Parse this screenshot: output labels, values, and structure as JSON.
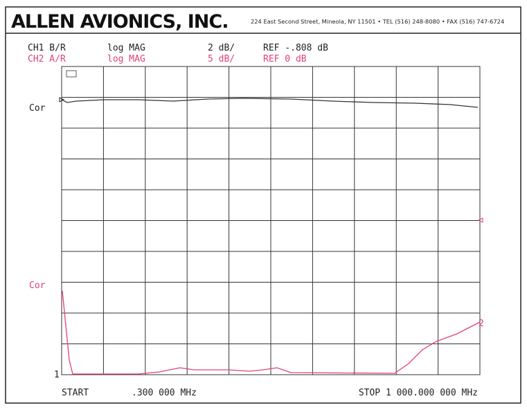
{
  "header": {
    "company": "ALLEN AVIONICS, INC.",
    "address": "224 East Second Street, Mineola, NY 11501 • TEL (516) 248-8080 • FAX (516) 747-6724"
  },
  "channels": [
    {
      "name": "CH1 B/R",
      "format": "log MAG",
      "scale": "2 dB/",
      "reference": "REF -.808 dB",
      "ref_label": "Cor",
      "trace_label": "1"
    },
    {
      "name": "CH2 A/R",
      "format": "log MAG",
      "scale": "5 dB/",
      "reference": "REF 0 dB",
      "ref_label": "Cor",
      "trace_label": "2"
    }
  ],
  "footer": {
    "start": "START",
    "start_value": ".300 000 MHz",
    "stop": "STOP 1 000.000 000 MHz"
  }
}
